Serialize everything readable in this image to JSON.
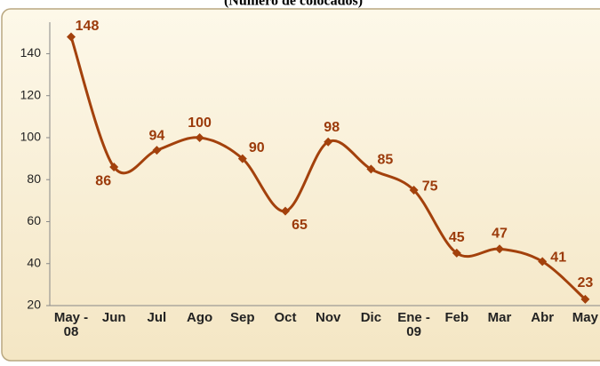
{
  "chart_data": {
    "type": "line",
    "title": "(Número de colocados)",
    "categories": [
      "May -\n08",
      "Jun",
      "Jul",
      "Ago",
      "Sep",
      "Oct",
      "Nov",
      "Dic",
      "Ene -\n09",
      "Feb",
      "Mar",
      "Abr",
      "May"
    ],
    "series": [
      {
        "name": "Colocados",
        "color": "#a3410c",
        "values": [
          148,
          86,
          94,
          100,
          90,
          65,
          98,
          85,
          75,
          45,
          47,
          41,
          23
        ]
      }
    ],
    "ylim": [
      20,
      155
    ],
    "yticks": [
      20,
      40,
      60,
      80,
      100,
      120,
      140
    ],
    "grid": false,
    "smooth": true
  }
}
